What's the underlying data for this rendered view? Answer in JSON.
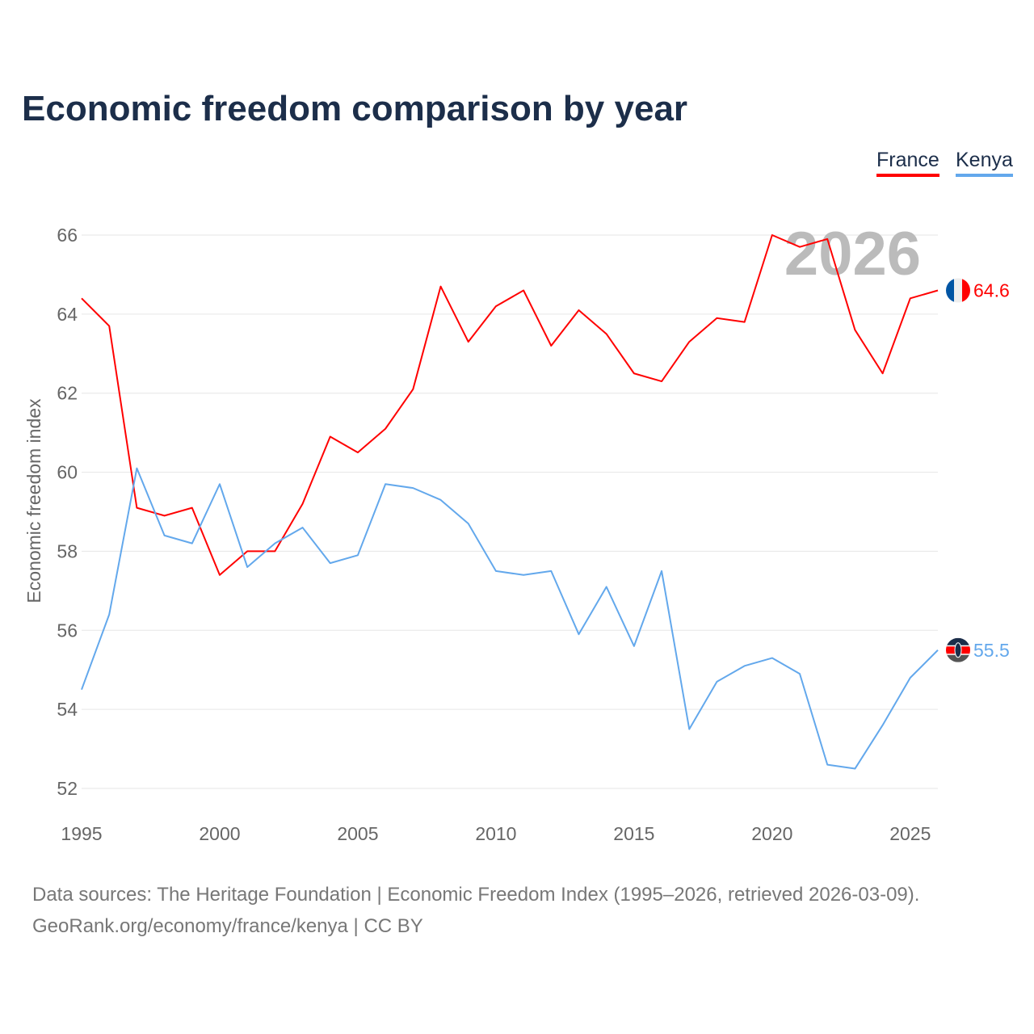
{
  "chart_data": {
    "type": "line",
    "title": "Economic freedom comparison by year",
    "xlabel": "",
    "ylabel": "Economic freedom index",
    "x": [
      1995,
      1996,
      1997,
      1998,
      1999,
      2000,
      2001,
      2002,
      2003,
      2004,
      2005,
      2006,
      2007,
      2008,
      2009,
      2010,
      2011,
      2012,
      2013,
      2014,
      2015,
      2016,
      2017,
      2018,
      2019,
      2020,
      2021,
      2022,
      2023,
      2024,
      2025,
      2026
    ],
    "xticks": [
      1995,
      2000,
      2005,
      2010,
      2015,
      2020,
      2025
    ],
    "yticks": [
      52,
      54,
      56,
      58,
      60,
      62,
      64,
      66
    ],
    "xlim": [
      1995,
      2026
    ],
    "ylim": [
      52,
      66
    ],
    "grid": true,
    "legend_placement": "top-right",
    "year_watermark": "2026",
    "series": [
      {
        "name": "France",
        "color": "#ff0000",
        "end_label": "64.6",
        "values": [
          64.4,
          63.7,
          59.1,
          58.9,
          59.1,
          57.4,
          58.0,
          58.0,
          59.2,
          60.9,
          60.5,
          61.1,
          62.1,
          64.7,
          63.3,
          64.2,
          64.6,
          63.2,
          64.1,
          63.5,
          62.5,
          62.3,
          63.3,
          63.9,
          63.8,
          66.0,
          65.7,
          65.9,
          63.6,
          62.5,
          64.4,
          64.6
        ]
      },
      {
        "name": "Kenya",
        "color": "#63a8ec",
        "end_label": "55.5",
        "values": [
          54.5,
          56.4,
          60.1,
          58.4,
          58.2,
          59.7,
          57.6,
          58.2,
          58.6,
          57.7,
          57.9,
          59.7,
          59.6,
          59.3,
          58.7,
          57.5,
          57.4,
          57.5,
          55.9,
          57.1,
          55.6,
          57.5,
          53.5,
          54.7,
          55.1,
          55.3,
          54.9,
          52.6,
          52.5,
          53.6,
          54.8,
          55.5
        ]
      }
    ]
  },
  "footer": {
    "line1": "Data sources: The Heritage Foundation | Economic Freedom Index (1995–2026, retrieved 2026-03-09).",
    "line2": "GeoRank.org/economy/france/kenya | CC BY"
  }
}
